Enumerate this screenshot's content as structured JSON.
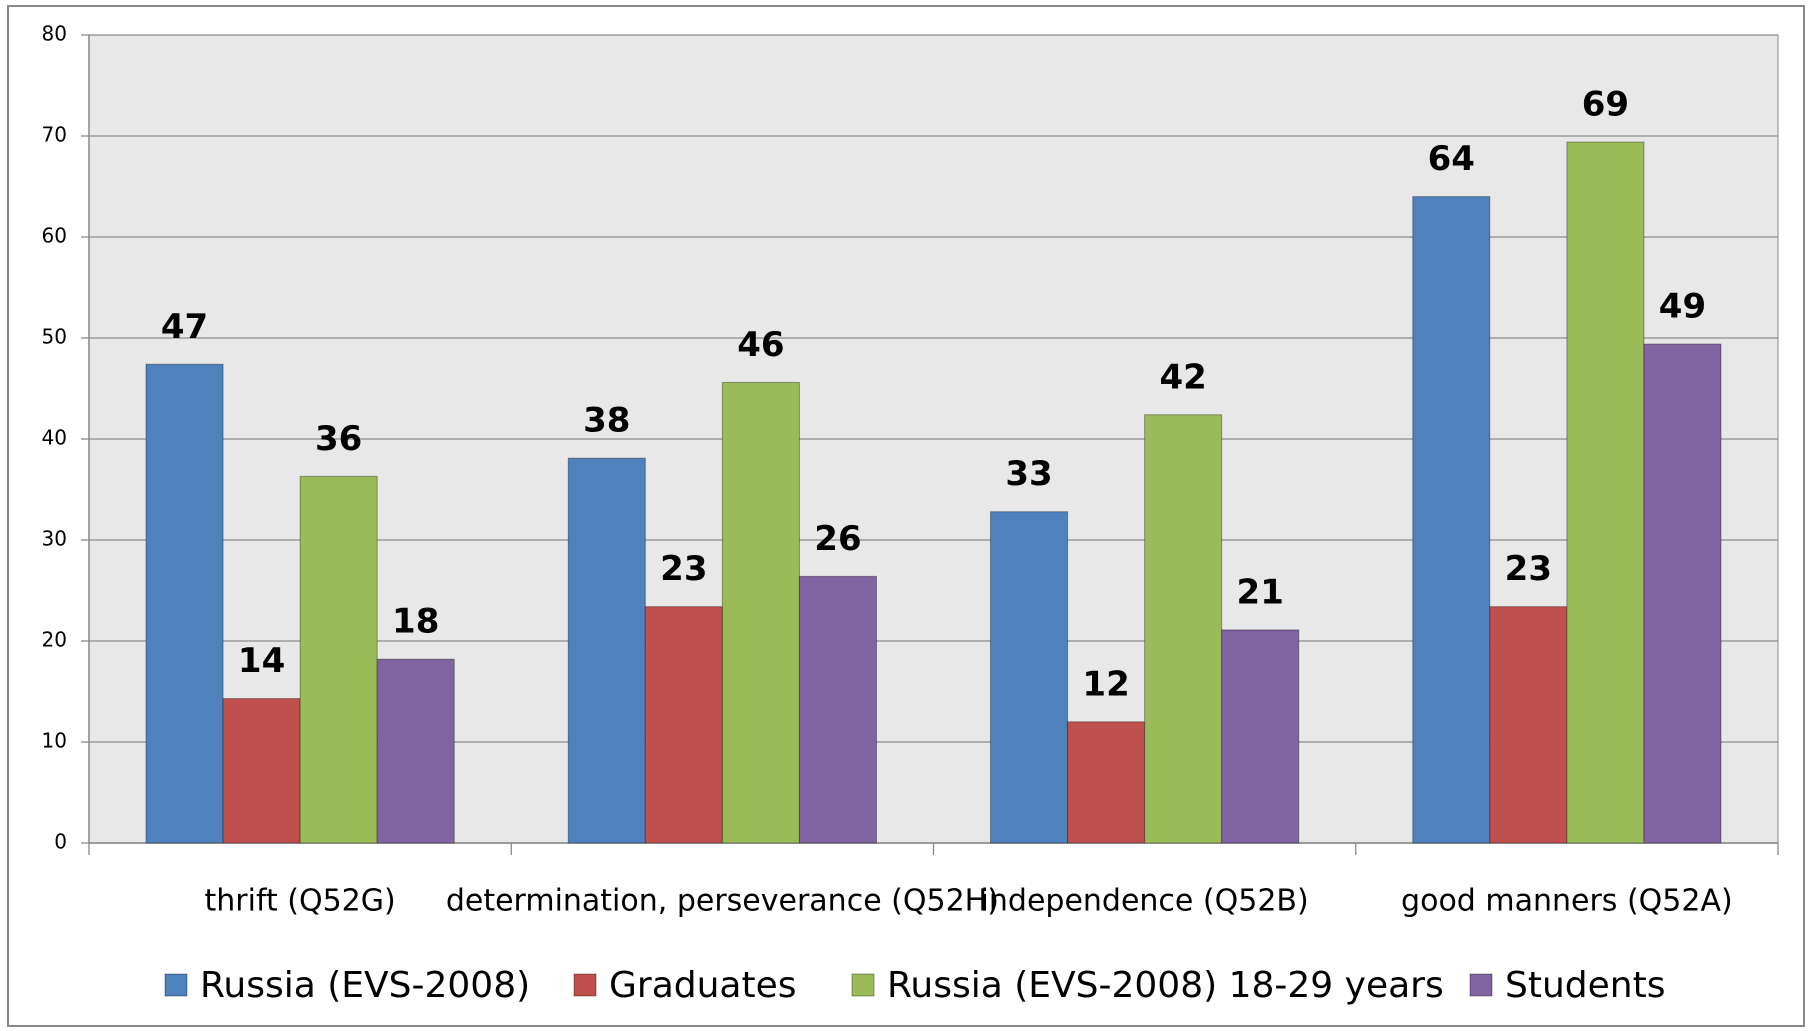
{
  "chart_data": {
    "type": "bar",
    "categories": [
      "thrift (Q52G)",
      "determination, perseverance (Q52H)",
      "independence (Q52B)",
      "good manners (Q52A)"
    ],
    "series": [
      {
        "name": "Russia (EVS-2008)",
        "color": "#4f81bd",
        "values": [
          47.4,
          38.1,
          32.8,
          64.0
        ],
        "value_labels": [
          "47",
          "38",
          "33",
          "64"
        ]
      },
      {
        "name": "Graduates",
        "color": "#c0504d",
        "values": [
          14.3,
          23.4,
          12.0,
          23.4
        ],
        "value_labels": [
          "14",
          "23",
          "12",
          "23"
        ]
      },
      {
        "name": "Russia (EVS-2008) 18-29 years",
        "color": "#9bbb59",
        "values": [
          36.3,
          45.6,
          42.4,
          69.4
        ],
        "value_labels": [
          "36",
          "46",
          "42",
          "69"
        ]
      },
      {
        "name": "Students",
        "color": "#8064a2",
        "values": [
          18.2,
          26.4,
          21.1,
          49.4
        ],
        "value_labels": [
          "18",
          "26",
          "21",
          "49"
        ]
      }
    ],
    "ylim": [
      0,
      80
    ],
    "yticks": [
      0,
      10,
      20,
      30,
      40,
      50,
      60,
      70,
      80
    ],
    "grid": true,
    "legend": "bottom"
  }
}
